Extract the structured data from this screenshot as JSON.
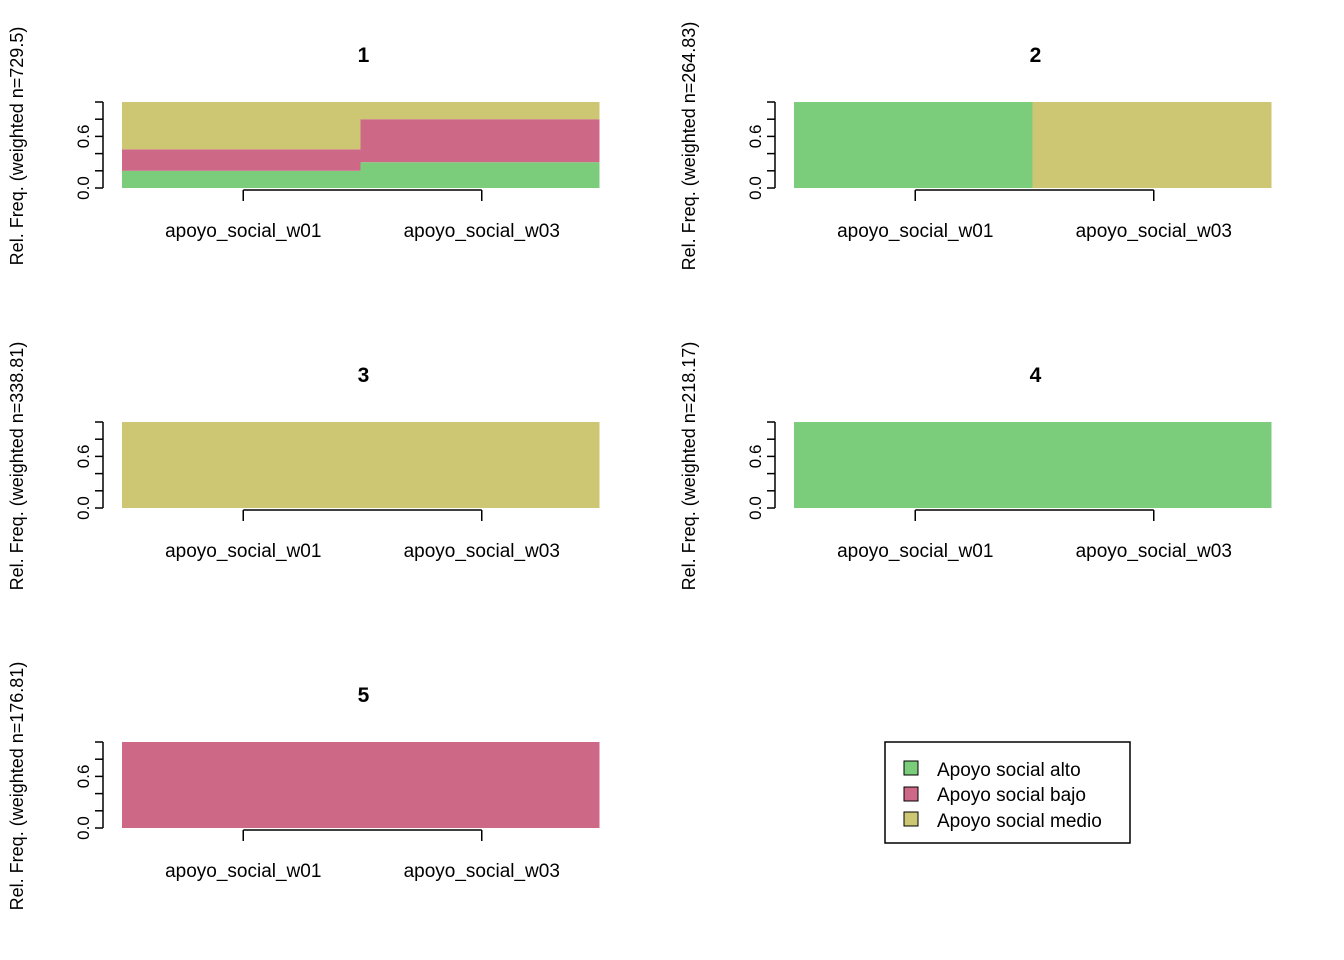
{
  "chart_data": {
    "type": "bar",
    "description": "Stacked relative-frequency state distribution plots per cluster",
    "legend": {
      "position": "bottom-right",
      "entries": [
        {
          "label": "Apoyo social alto",
          "color": "#7BCD7B"
        },
        {
          "label": "Apoyo social bajo",
          "color": "#CD6987"
        },
        {
          "label": "Apoyo social medio",
          "color": "#CDC773"
        }
      ]
    },
    "panels": [
      {
        "title": "1",
        "ylabel": "Rel. Freq. (weighted n=729.5)",
        "categories": [
          "apoyo_social_w01",
          "apoyo_social_w03"
        ],
        "yticks": [
          "0.0",
          "0.6"
        ],
        "ylim": [
          0,
          1
        ],
        "series": [
          {
            "name": "Apoyo social alto",
            "values": [
              0.2,
              0.3
            ]
          },
          {
            "name": "Apoyo social bajo",
            "values": [
              0.25,
              0.5
            ]
          },
          {
            "name": "Apoyo social medio",
            "values": [
              0.55,
              0.2
            ]
          }
        ]
      },
      {
        "title": "2",
        "ylabel": "Rel. Freq. (weighted n=264.83)",
        "categories": [
          "apoyo_social_w01",
          "apoyo_social_w03"
        ],
        "yticks": [
          "0.0",
          "0.6"
        ],
        "ylim": [
          0,
          1
        ],
        "series": [
          {
            "name": "Apoyo social alto",
            "values": [
              1.0,
              0.0
            ]
          },
          {
            "name": "Apoyo social bajo",
            "values": [
              0.0,
              0.0
            ]
          },
          {
            "name": "Apoyo social medio",
            "values": [
              0.0,
              1.0
            ]
          }
        ]
      },
      {
        "title": "3",
        "ylabel": "Rel. Freq. (weighted n=338.81)",
        "categories": [
          "apoyo_social_w01",
          "apoyo_social_w03"
        ],
        "yticks": [
          "0.0",
          "0.6"
        ],
        "ylim": [
          0,
          1
        ],
        "series": [
          {
            "name": "Apoyo social alto",
            "values": [
              0.0,
              0.0
            ]
          },
          {
            "name": "Apoyo social bajo",
            "values": [
              0.0,
              0.0
            ]
          },
          {
            "name": "Apoyo social medio",
            "values": [
              1.0,
              1.0
            ]
          }
        ]
      },
      {
        "title": "4",
        "ylabel": "Rel. Freq. (weighted n=218.17)",
        "categories": [
          "apoyo_social_w01",
          "apoyo_social_w03"
        ],
        "yticks": [
          "0.0",
          "0.6"
        ],
        "ylim": [
          0,
          1
        ],
        "series": [
          {
            "name": "Apoyo social alto",
            "values": [
              1.0,
              1.0
            ]
          },
          {
            "name": "Apoyo social bajo",
            "values": [
              0.0,
              0.0
            ]
          },
          {
            "name": "Apoyo social medio",
            "values": [
              0.0,
              0.0
            ]
          }
        ]
      },
      {
        "title": "5",
        "ylabel": "Rel. Freq. (weighted n=176.81)",
        "categories": [
          "apoyo_social_w01",
          "apoyo_social_w03"
        ],
        "yticks": [
          "0.0",
          "0.6"
        ],
        "ylim": [
          0,
          1
        ],
        "series": [
          {
            "name": "Apoyo social alto",
            "values": [
              0.0,
              0.0
            ]
          },
          {
            "name": "Apoyo social bajo",
            "values": [
              1.0,
              1.0
            ]
          },
          {
            "name": "Apoyo social medio",
            "values": [
              0.0,
              0.0
            ]
          }
        ]
      }
    ]
  }
}
